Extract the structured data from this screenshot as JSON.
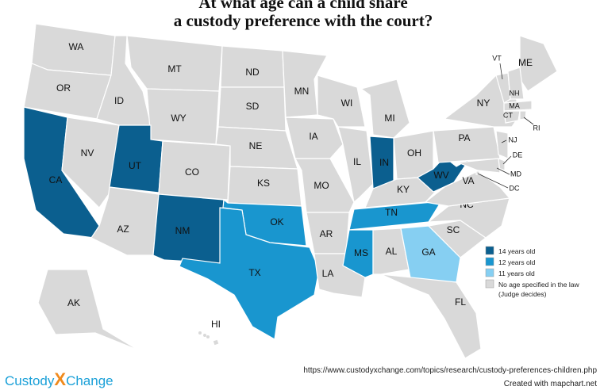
{
  "title": [
    "At what age can a child share",
    "a custody preference with the court?"
  ],
  "legend": [
    {
      "label": "14 years old",
      "color": "#0b5f8f"
    },
    {
      "label": "12 years old",
      "color": "#1996cf"
    },
    {
      "label": "11 years old",
      "color": "#86cff2"
    },
    {
      "label": [
        "No age specified in the law",
        "(Judge decides)"
      ],
      "color": "#d9d9d9"
    }
  ],
  "states": [
    {
      "label": "WA",
      "group": 3
    },
    {
      "label": "OR",
      "group": 3
    },
    {
      "label": "CA",
      "group": 0
    },
    {
      "label": "NV",
      "group": 3
    },
    {
      "label": "ID",
      "group": 3
    },
    {
      "label": "MT",
      "group": 3
    },
    {
      "label": "WY",
      "group": 3
    },
    {
      "label": "UT",
      "group": 0
    },
    {
      "label": "CO",
      "group": 3
    },
    {
      "label": "AZ",
      "group": 3
    },
    {
      "label": "NM",
      "group": 0
    },
    {
      "label": "ND",
      "group": 3
    },
    {
      "label": "SD",
      "group": 3
    },
    {
      "label": "NE",
      "group": 3
    },
    {
      "label": "KS",
      "group": 3
    },
    {
      "label": "OK",
      "group": 1
    },
    {
      "label": "TX",
      "group": 1
    },
    {
      "label": "MN",
      "group": 3
    },
    {
      "label": "IA",
      "group": 3
    },
    {
      "label": "MO",
      "group": 3
    },
    {
      "label": "AR",
      "group": 3
    },
    {
      "label": "LA",
      "group": 3
    },
    {
      "label": "WI",
      "group": 3
    },
    {
      "label": "IL",
      "group": 3
    },
    {
      "label": "MI",
      "group": 3
    },
    {
      "label": "IN",
      "group": 0
    },
    {
      "label": "OH",
      "group": 3
    },
    {
      "label": "KY",
      "group": 3
    },
    {
      "label": "TN",
      "group": 1
    },
    {
      "label": "MS",
      "group": 1
    },
    {
      "label": "AL",
      "group": 3
    },
    {
      "label": "GA",
      "group": 2
    },
    {
      "label": "FL",
      "group": 3
    },
    {
      "label": "SC",
      "group": 3
    },
    {
      "label": "NC",
      "group": 3
    },
    {
      "label": "VA",
      "group": 3
    },
    {
      "label": "WV",
      "group": 0
    },
    {
      "label": "PA",
      "group": 3
    },
    {
      "label": "NY",
      "group": 3
    },
    {
      "label": "ME",
      "group": 3
    },
    {
      "label": "VT",
      "group": 3
    },
    {
      "label": "NH",
      "group": 3
    },
    {
      "label": "MA",
      "group": 3
    },
    {
      "label": "CT",
      "group": 3
    },
    {
      "label": "RI",
      "group": 3
    },
    {
      "label": "NJ",
      "group": 3
    },
    {
      "label": "DE",
      "group": 3
    },
    {
      "label": "MD",
      "group": 3
    },
    {
      "label": "DC",
      "group": 3
    },
    {
      "label": "AK",
      "group": 3
    },
    {
      "label": "HI",
      "group": 3
    }
  ],
  "url": "https://www.custodyxchange.com/topics/research/custody-preferences-children.php",
  "credit": "Created with mapchart.net",
  "logo": [
    "Custody",
    "X",
    "Change"
  ]
}
